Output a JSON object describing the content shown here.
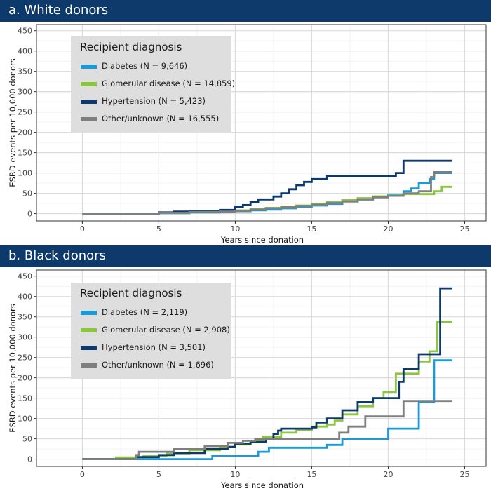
{
  "chart_data": [
    {
      "type": "line",
      "title": "a. White donors",
      "xlabel": "Years since donation",
      "ylabel": "ESRD events per 10,000 donors",
      "xlim": [
        -3,
        26.4
      ],
      "ylim": [
        -18,
        465
      ],
      "x_ticks": [
        0,
        5,
        10,
        15,
        20,
        25
      ],
      "y_ticks": [
        0,
        50,
        100,
        150,
        200,
        250,
        300,
        350,
        400,
        450
      ],
      "grid": true,
      "step": true,
      "legend": {
        "title": "Recipient diagnosis",
        "position": "top-left"
      },
      "series": [
        {
          "name": "Diabetes (N = 9,646)",
          "color": "#1a9ad6",
          "points": [
            [
              0,
              0
            ],
            [
              5,
              1
            ],
            [
              7,
              3
            ],
            [
              9,
              5
            ],
            [
              10,
              6
            ],
            [
              11,
              8
            ],
            [
              12,
              10
            ],
            [
              13,
              13
            ],
            [
              14,
              17
            ],
            [
              15,
              20
            ],
            [
              16,
              24
            ],
            [
              17,
              30
            ],
            [
              18,
              35
            ],
            [
              19,
              42
            ],
            [
              20,
              47
            ],
            [
              21,
              55
            ],
            [
              21.5,
              62
            ],
            [
              22,
              75
            ],
            [
              22.7,
              85
            ],
            [
              23,
              100
            ],
            [
              24.2,
              100
            ]
          ]
        },
        {
          "name": "Glomerular disease (N = 14,859)",
          "color": "#8cc63f",
          "points": [
            [
              0,
              0
            ],
            [
              5,
              2
            ],
            [
              7,
              4
            ],
            [
              9,
              6
            ],
            [
              10,
              8
            ],
            [
              11,
              11
            ],
            [
              12,
              14
            ],
            [
              13,
              17
            ],
            [
              14,
              20
            ],
            [
              15,
              24
            ],
            [
              16,
              28
            ],
            [
              17,
              33
            ],
            [
              18,
              38
            ],
            [
              19,
              42
            ],
            [
              20,
              45
            ],
            [
              21,
              48
            ],
            [
              23,
              55
            ],
            [
              23.5,
              66
            ],
            [
              24.2,
              66
            ]
          ]
        },
        {
          "name": "Hypertension (N = 5,423)",
          "color": "#0d3a6b",
          "points": [
            [
              0,
              0
            ],
            [
              5,
              3
            ],
            [
              6,
              5
            ],
            [
              7,
              7
            ],
            [
              9,
              9
            ],
            [
              10,
              17
            ],
            [
              10.5,
              21
            ],
            [
              11,
              28
            ],
            [
              11.5,
              35
            ],
            [
              12.5,
              42
            ],
            [
              13,
              50
            ],
            [
              13.5,
              60
            ],
            [
              14,
              70
            ],
            [
              14.5,
              78
            ],
            [
              15,
              85
            ],
            [
              16,
              92
            ],
            [
              20,
              92
            ],
            [
              20.5,
              100
            ],
            [
              21,
              130
            ],
            [
              24.2,
              130
            ]
          ]
        },
        {
          "name": "Other/unknown (N = 16,555)",
          "color": "#7f7f7f",
          "points": [
            [
              0,
              0
            ],
            [
              5,
              2
            ],
            [
              7,
              4
            ],
            [
              9,
              5
            ],
            [
              10,
              7
            ],
            [
              11,
              10
            ],
            [
              12,
              13
            ],
            [
              13,
              16
            ],
            [
              14,
              19
            ],
            [
              15,
              22
            ],
            [
              16,
              26
            ],
            [
              17,
              30
            ],
            [
              18,
              35
            ],
            [
              19,
              40
            ],
            [
              20,
              44
            ],
            [
              21,
              50
            ],
            [
              22,
              55
            ],
            [
              22.8,
              90
            ],
            [
              23,
              102
            ],
            [
              24.2,
              102
            ]
          ]
        }
      ]
    },
    {
      "type": "line",
      "title": "b. Black donors",
      "xlabel": "Years since donation",
      "ylabel": "ESRD events per 10,000 donors",
      "xlim": [
        -3,
        26.4
      ],
      "ylim": [
        -18,
        465
      ],
      "x_ticks": [
        0,
        5,
        10,
        15,
        20,
        25
      ],
      "y_ticks": [
        0,
        50,
        100,
        150,
        200,
        250,
        300,
        350,
        400,
        450
      ],
      "grid": true,
      "step": true,
      "legend": {
        "title": "Recipient diagnosis",
        "position": "top-left"
      },
      "series": [
        {
          "name": "Diabetes (N = 2,119)",
          "color": "#1a9ad6",
          "points": [
            [
              0,
              0
            ],
            [
              8.5,
              8
            ],
            [
              11.5,
              18
            ],
            [
              12.2,
              28
            ],
            [
              16,
              35
            ],
            [
              17,
              50
            ],
            [
              20,
              75
            ],
            [
              22,
              140
            ],
            [
              23,
              243
            ],
            [
              24.2,
              243
            ]
          ]
        },
        {
          "name": "Glomerular disease (N = 2,908)",
          "color": "#8cc63f",
          "points": [
            [
              0,
              0
            ],
            [
              2.2,
              4
            ],
            [
              4,
              8
            ],
            [
              5.5,
              14
            ],
            [
              7,
              22
            ],
            [
              9,
              30
            ],
            [
              10,
              36
            ],
            [
              11,
              45
            ],
            [
              11.8,
              55
            ],
            [
              13,
              65
            ],
            [
              14,
              72
            ],
            [
              15,
              80
            ],
            [
              16,
              85
            ],
            [
              16.5,
              95
            ],
            [
              17,
              110
            ],
            [
              18,
              130
            ],
            [
              19,
              150
            ],
            [
              19.7,
              165
            ],
            [
              20.5,
              210
            ],
            [
              22,
              240
            ],
            [
              22.7,
              265
            ],
            [
              23.2,
              338
            ],
            [
              24.2,
              338
            ]
          ]
        },
        {
          "name": "Hypertension (N = 3,501)",
          "color": "#0d3a6b",
          "points": [
            [
              0,
              0
            ],
            [
              3.5,
              5
            ],
            [
              5,
              10
            ],
            [
              6,
              15
            ],
            [
              8,
              25
            ],
            [
              9.5,
              30
            ],
            [
              10,
              38
            ],
            [
              11,
              42
            ],
            [
              12,
              50
            ],
            [
              12.5,
              62
            ],
            [
              12.8,
              70
            ],
            [
              13,
              75
            ],
            [
              15,
              78
            ],
            [
              15.3,
              90
            ],
            [
              16,
              100
            ],
            [
              17,
              120
            ],
            [
              18,
              140
            ],
            [
              19,
              150
            ],
            [
              20.7,
              190
            ],
            [
              21,
              222
            ],
            [
              21.7,
              222
            ],
            [
              22,
              258
            ],
            [
              23,
              258
            ],
            [
              23.4,
              420
            ],
            [
              24.2,
              420
            ]
          ]
        },
        {
          "name": "Other/unknown (N = 1,696)",
          "color": "#7f7f7f",
          "points": [
            [
              0,
              0
            ],
            [
              3.5,
              10
            ],
            [
              3.7,
              18
            ],
            [
              6,
              25
            ],
            [
              8,
              32
            ],
            [
              9.5,
              40
            ],
            [
              10.5,
              45
            ],
            [
              11.3,
              50
            ],
            [
              16.5,
              50
            ],
            [
              16.8,
              65
            ],
            [
              17.4,
              80
            ],
            [
              18.5,
              105
            ],
            [
              20.8,
              105
            ],
            [
              21,
              143
            ],
            [
              24.2,
              143
            ]
          ]
        }
      ]
    }
  ]
}
